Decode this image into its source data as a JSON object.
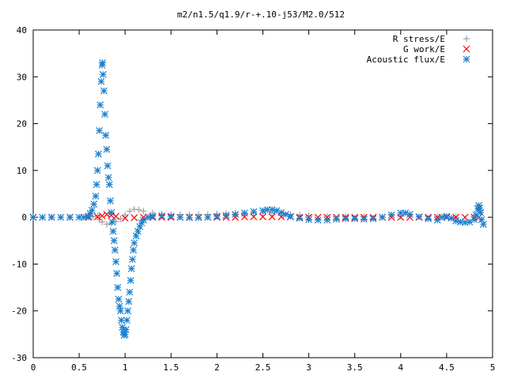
{
  "chart_data": {
    "type": "scatter",
    "title": "m2/n1.5/q1.9/r-+.10-j53/M2.0/512",
    "xlabel": "",
    "ylabel": "",
    "xlim": [
      0,
      5
    ],
    "ylim": [
      -30,
      40
    ],
    "x_ticks": [
      0,
      0.5,
      1,
      1.5,
      2,
      2.5,
      3,
      3.5,
      4,
      4.5,
      5
    ],
    "x_tick_labels": [
      "0",
      "0.5",
      "1",
      "1.5",
      "2",
      "2.5",
      "3",
      "3.5",
      "4",
      "4.5",
      "5"
    ],
    "y_ticks": [
      -30,
      -20,
      -10,
      0,
      10,
      20,
      30,
      40
    ],
    "y_tick_labels": [
      "-30",
      "-20",
      "-10",
      "0",
      "10",
      "20",
      "30",
      "40"
    ],
    "grid": false,
    "legend_position": "top-right",
    "series": [
      {
        "name": "R stress/E",
        "marker": "plus",
        "color": "#a0a0a0",
        "points": [
          [
            0.0,
            0.0
          ],
          [
            0.1,
            0.0
          ],
          [
            0.2,
            0.0
          ],
          [
            0.3,
            0.0
          ],
          [
            0.4,
            0.0
          ],
          [
            0.5,
            0.0
          ],
          [
            0.6,
            0.0
          ],
          [
            0.65,
            0.1
          ],
          [
            0.7,
            0.3
          ],
          [
            0.72,
            -0.5
          ],
          [
            0.75,
            -1.0
          ],
          [
            0.8,
            -1.5
          ],
          [
            0.85,
            -1.3
          ],
          [
            0.9,
            -0.9
          ],
          [
            0.95,
            -0.3
          ],
          [
            1.0,
            0.5
          ],
          [
            1.05,
            1.3
          ],
          [
            1.1,
            1.7
          ],
          [
            1.15,
            1.6
          ],
          [
            1.2,
            1.3
          ],
          [
            1.3,
            0.9
          ],
          [
            1.4,
            0.7
          ],
          [
            1.5,
            0.6
          ],
          [
            1.6,
            0.6
          ],
          [
            1.7,
            0.6
          ],
          [
            1.8,
            0.6
          ],
          [
            1.9,
            0.6
          ],
          [
            2.0,
            0.7
          ],
          [
            2.1,
            0.8
          ],
          [
            2.2,
            0.9
          ],
          [
            2.3,
            0.9
          ],
          [
            2.4,
            0.9
          ],
          [
            2.5,
            0.9
          ],
          [
            2.6,
            0.9
          ],
          [
            2.7,
            0.8
          ],
          [
            2.8,
            0.6
          ],
          [
            2.9,
            0.5
          ],
          [
            3.0,
            0.4
          ],
          [
            3.2,
            0.2
          ],
          [
            3.4,
            0.1
          ],
          [
            3.6,
            0.1
          ],
          [
            3.8,
            0.1
          ],
          [
            4.0,
            0.2
          ],
          [
            4.2,
            0.1
          ],
          [
            4.4,
            0.1
          ],
          [
            4.6,
            0.0
          ],
          [
            4.8,
            0.0
          ]
        ]
      },
      {
        "name": "G work/E",
        "marker": "cross",
        "color": "#ff0000",
        "points": [
          [
            0.0,
            0.0
          ],
          [
            0.2,
            0.0
          ],
          [
            0.4,
            0.0
          ],
          [
            0.6,
            0.0
          ],
          [
            0.7,
            0.1
          ],
          [
            0.75,
            0.3
          ],
          [
            0.8,
            0.6
          ],
          [
            0.85,
            0.4
          ],
          [
            0.9,
            0.2
          ],
          [
            1.0,
            -0.2
          ],
          [
            1.1,
            -0.1
          ],
          [
            1.2,
            0.0
          ],
          [
            1.3,
            0.0
          ],
          [
            1.4,
            0.0
          ],
          [
            1.5,
            0.0
          ],
          [
            1.6,
            0.0
          ],
          [
            1.7,
            0.0
          ],
          [
            1.8,
            0.0
          ],
          [
            1.9,
            0.0
          ],
          [
            2.0,
            0.0
          ],
          [
            2.1,
            0.0
          ],
          [
            2.2,
            0.0
          ],
          [
            2.3,
            0.1
          ],
          [
            2.4,
            0.1
          ],
          [
            2.5,
            0.1
          ],
          [
            2.6,
            0.1
          ],
          [
            2.7,
            0.1
          ],
          [
            2.8,
            0.1
          ],
          [
            2.9,
            0.0
          ],
          [
            3.0,
            0.0
          ],
          [
            3.1,
            0.0
          ],
          [
            3.2,
            0.0
          ],
          [
            3.3,
            0.0
          ],
          [
            3.4,
            0.0
          ],
          [
            3.5,
            0.0
          ],
          [
            3.6,
            0.0
          ],
          [
            3.7,
            0.0
          ],
          [
            3.8,
            0.0
          ],
          [
            3.9,
            0.0
          ],
          [
            4.0,
            0.0
          ],
          [
            4.1,
            0.0
          ],
          [
            4.2,
            0.0
          ],
          [
            4.3,
            0.0
          ],
          [
            4.4,
            0.0
          ],
          [
            4.5,
            0.0
          ],
          [
            4.6,
            0.0
          ],
          [
            4.7,
            0.0
          ],
          [
            4.8,
            0.0
          ],
          [
            4.85,
            0.0
          ]
        ]
      },
      {
        "name": "Acoustic flux/E",
        "marker": "star",
        "color": "#1a80d0",
        "points": [
          [
            0.0,
            0.0
          ],
          [
            0.1,
            0.0
          ],
          [
            0.2,
            0.0
          ],
          [
            0.3,
            0.0
          ],
          [
            0.4,
            0.0
          ],
          [
            0.5,
            0.0
          ],
          [
            0.55,
            0.0
          ],
          [
            0.6,
            0.2
          ],
          [
            0.62,
            0.8
          ],
          [
            0.64,
            1.5
          ],
          [
            0.66,
            2.8
          ],
          [
            0.68,
            4.5
          ],
          [
            0.69,
            7.0
          ],
          [
            0.7,
            10.0
          ],
          [
            0.71,
            13.5
          ],
          [
            0.72,
            18.5
          ],
          [
            0.73,
            24.0
          ],
          [
            0.74,
            29.0
          ],
          [
            0.75,
            32.5
          ],
          [
            0.755,
            33.0
          ],
          [
            0.76,
            30.5
          ],
          [
            0.77,
            27.0
          ],
          [
            0.78,
            22.0
          ],
          [
            0.79,
            17.5
          ],
          [
            0.8,
            14.5
          ],
          [
            0.81,
            11.0
          ],
          [
            0.82,
            8.5
          ],
          [
            0.83,
            7.0
          ],
          [
            0.84,
            3.5
          ],
          [
            0.85,
            1.0
          ],
          [
            0.86,
            -1.0
          ],
          [
            0.87,
            -3.0
          ],
          [
            0.88,
            -5.0
          ],
          [
            0.89,
            -7.0
          ],
          [
            0.9,
            -9.5
          ],
          [
            0.91,
            -12.0
          ],
          [
            0.92,
            -15.0
          ],
          [
            0.93,
            -17.5
          ],
          [
            0.94,
            -19.0
          ],
          [
            0.95,
            -20.0
          ],
          [
            0.96,
            -22.0
          ],
          [
            0.97,
            -23.5
          ],
          [
            0.98,
            -24.5
          ],
          [
            0.99,
            -25.2
          ],
          [
            1.0,
            -25.0
          ],
          [
            1.01,
            -24.0
          ],
          [
            1.02,
            -22.0
          ],
          [
            1.03,
            -20.0
          ],
          [
            1.04,
            -18.0
          ],
          [
            1.05,
            -16.0
          ],
          [
            1.06,
            -13.5
          ],
          [
            1.07,
            -11.0
          ],
          [
            1.08,
            -9.0
          ],
          [
            1.09,
            -7.0
          ],
          [
            1.1,
            -5.5
          ],
          [
            1.12,
            -4.0
          ],
          [
            1.14,
            -3.0
          ],
          [
            1.16,
            -2.0
          ],
          [
            1.18,
            -1.2
          ],
          [
            1.2,
            -0.6
          ],
          [
            1.25,
            0.0
          ],
          [
            1.3,
            0.2
          ],
          [
            1.4,
            0.3
          ],
          [
            1.5,
            0.2
          ],
          [
            1.6,
            0.0
          ],
          [
            1.7,
            -0.1
          ],
          [
            1.8,
            -0.1
          ],
          [
            1.9,
            0.0
          ],
          [
            2.0,
            0.2
          ],
          [
            2.1,
            0.4
          ],
          [
            2.2,
            0.6
          ],
          [
            2.3,
            0.9
          ],
          [
            2.4,
            1.2
          ],
          [
            2.5,
            1.4
          ],
          [
            2.55,
            1.6
          ],
          [
            2.6,
            1.6
          ],
          [
            2.65,
            1.4
          ],
          [
            2.7,
            1.0
          ],
          [
            2.75,
            0.6
          ],
          [
            2.8,
            0.2
          ],
          [
            2.9,
            -0.2
          ],
          [
            3.0,
            -0.5
          ],
          [
            3.1,
            -0.6
          ],
          [
            3.2,
            -0.6
          ],
          [
            3.3,
            -0.4
          ],
          [
            3.4,
            -0.3
          ],
          [
            3.5,
            -0.3
          ],
          [
            3.6,
            -0.4
          ],
          [
            3.7,
            -0.3
          ],
          [
            3.8,
            0.0
          ],
          [
            3.9,
            0.5
          ],
          [
            4.0,
            0.9
          ],
          [
            4.05,
            0.9
          ],
          [
            4.1,
            0.6
          ],
          [
            4.2,
            0.1
          ],
          [
            4.3,
            -0.3
          ],
          [
            4.4,
            -0.6
          ],
          [
            4.45,
            0.0
          ],
          [
            4.5,
            0.2
          ],
          [
            4.55,
            -0.2
          ],
          [
            4.6,
            -0.8
          ],
          [
            4.65,
            -1.0
          ],
          [
            4.7,
            -1.1
          ],
          [
            4.75,
            -1.0
          ],
          [
            4.8,
            -0.5
          ],
          [
            4.82,
            0.5
          ],
          [
            4.84,
            1.8
          ],
          [
            4.85,
            2.5
          ],
          [
            4.86,
            2.0
          ],
          [
            4.87,
            1.0
          ],
          [
            4.88,
            -0.5
          ],
          [
            4.9,
            -1.5
          ]
        ]
      }
    ]
  }
}
